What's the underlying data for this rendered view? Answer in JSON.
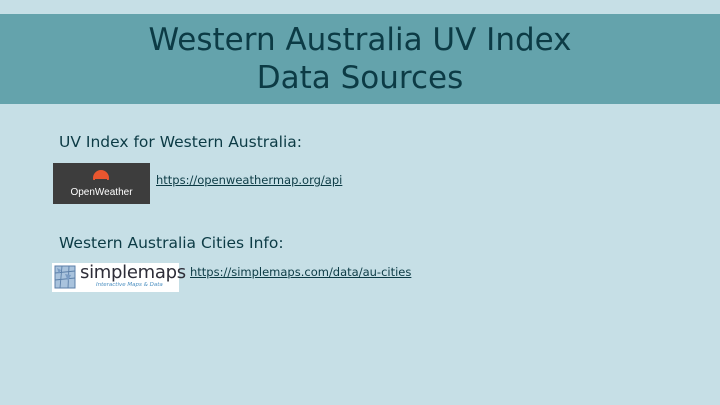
{
  "title": {
    "line1": "Western Australia UV Index",
    "line2": "Data Sources"
  },
  "sections": [
    {
      "heading": "UV Index for Western Australia:",
      "logo": {
        "icon": "openweather-sun-icon",
        "text": "OpenWeather"
      },
      "link": "https://openweathermap.org/api"
    },
    {
      "heading": "Western Australia Cities Info:",
      "logo": {
        "icon": "simplemaps-map-icon",
        "text": "simplemaps",
        "tagline": "Interactive Maps & Data"
      },
      "link": "https://simplemaps.com/data/au-cities"
    }
  ],
  "colors": {
    "background": "#c6dfe6",
    "title_band": "#64a3ac",
    "text": "#0c3b45",
    "openweather_accent": "#e8562f"
  }
}
